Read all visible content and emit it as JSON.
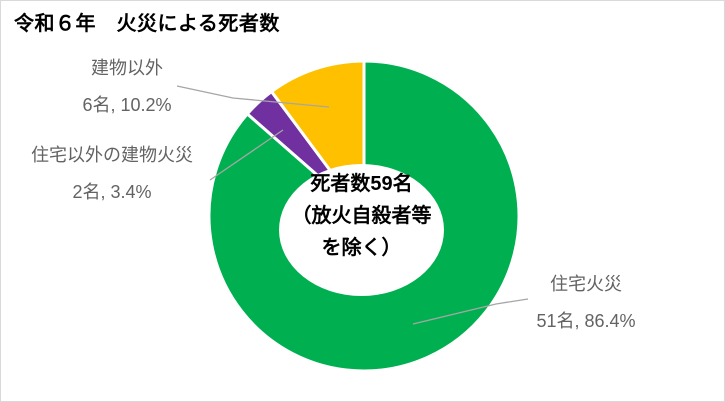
{
  "title": "令和６年　火災による死者数",
  "chart_data": {
    "type": "pie",
    "subtype": "donut",
    "title": "令和６年　火災による死者数",
    "categories": [
      "住宅火災",
      "住宅以外の建物火災",
      "建物以外"
    ],
    "values": [
      51,
      2,
      6
    ],
    "percents": [
      86.4,
      3.4,
      10.2
    ],
    "unit": "名",
    "total": 59,
    "colors": [
      "#00B050",
      "#7030A0",
      "#FFC000"
    ],
    "slice_ids": [
      "residential-fire",
      "non-residential-building-fire",
      "non-building"
    ],
    "start_angle_deg": 0,
    "direction": "clockwise",
    "legend": "none",
    "center_note": "死者数59名（放火自殺者等を除く）"
  },
  "labels": {
    "non_building": {
      "name": "建物以外",
      "value": "6名, 10.2%"
    },
    "non_residential": {
      "name": "住宅以外の建物火災",
      "value": "2名, 3.4%"
    },
    "residential": {
      "name": "住宅火災",
      "value": "51名, 86.4%"
    }
  },
  "center": {
    "line1": "死者数59名",
    "line2": "（放火自殺者等",
    "line3": "を除く）"
  },
  "styles": {
    "leader_line": "#A6A6A6",
    "label_text": "#636363",
    "slice_border": "#FFFFFF",
    "title_color": "#000000",
    "chart_border": "#D9D9D9",
    "background": "#FFFFFF"
  }
}
